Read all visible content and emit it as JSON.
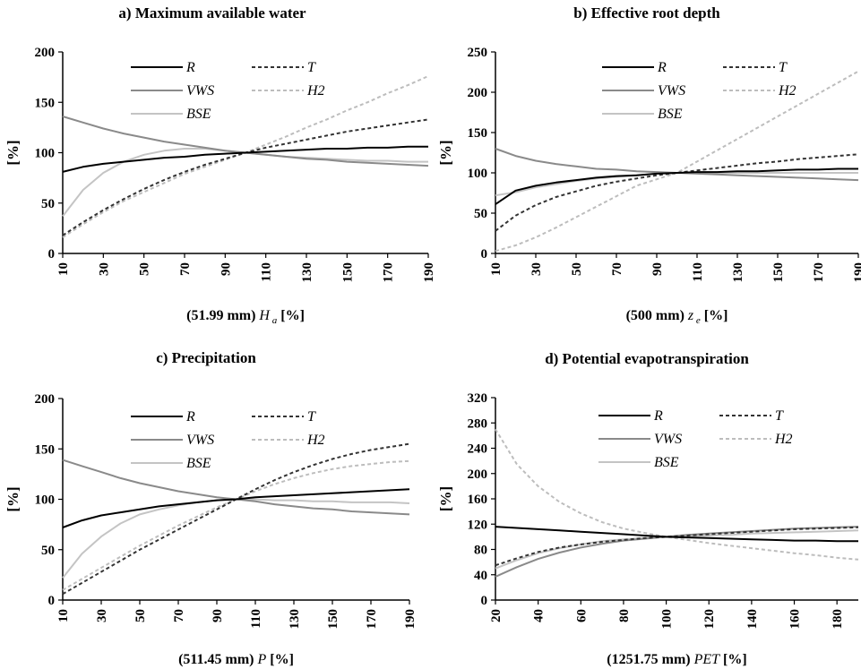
{
  "chart_data": [
    {
      "type": "line",
      "title": "a) Maximum available water",
      "xlabel_prefix": "(51.99 mm)",
      "xlabel_var": "H",
      "xlabel_sub": "a",
      "xlabel_unit": "[%]",
      "ylabel": "[%]",
      "xlim": [
        10,
        190
      ],
      "ylim": [
        0,
        200
      ],
      "yticks": [
        0,
        50,
        100,
        150,
        200
      ],
      "xticks": [
        10,
        30,
        50,
        70,
        90,
        110,
        130,
        150,
        170,
        190
      ],
      "x": [
        10,
        20,
        30,
        40,
        50,
        60,
        70,
        80,
        90,
        100,
        110,
        120,
        130,
        140,
        150,
        160,
        170,
        180,
        190
      ],
      "series": [
        {
          "name": "R",
          "color": "#000000",
          "dash": false,
          "values": [
            81,
            86,
            89,
            91,
            93,
            95,
            96,
            98,
            99,
            100,
            101,
            102,
            103,
            104,
            104,
            105,
            105,
            106,
            106
          ]
        },
        {
          "name": "T",
          "color": "#333333",
          "dash": true,
          "values": [
            18,
            31,
            43,
            54,
            64,
            73,
            81,
            88,
            94,
            100,
            105,
            109,
            113,
            117,
            121,
            124,
            127,
            130,
            133
          ]
        },
        {
          "name": "VWS",
          "color": "#8a8a8a",
          "dash": false,
          "values": [
            136,
            130,
            124,
            119,
            115,
            111,
            108,
            105,
            102,
            100,
            98,
            96,
            94,
            93,
            91,
            90,
            89,
            88,
            87
          ]
        },
        {
          "name": "H2",
          "color": "#bdbdbd",
          "dash": true,
          "values": [
            16,
            29,
            41,
            52,
            61,
            70,
            79,
            86,
            93,
            100,
            108,
            116,
            125,
            133,
            142,
            150,
            159,
            167,
            176
          ]
        },
        {
          "name": "BSE",
          "color": "#c4c4c4",
          "dash": false,
          "values": [
            37,
            63,
            80,
            91,
            98,
            102,
            104,
            104,
            102,
            100,
            98,
            96,
            95,
            94,
            93,
            92,
            92,
            91,
            91
          ]
        }
      ]
    },
    {
      "type": "line",
      "title": "b) Effective root depth",
      "xlabel_prefix": "(500 mm)",
      "xlabel_var": "z",
      "xlabel_sub": "e",
      "xlabel_unit": "[%]",
      "ylabel": "[%]",
      "xlim": [
        10,
        190
      ],
      "ylim": [
        0,
        250
      ],
      "yticks": [
        0,
        50,
        100,
        150,
        200,
        250
      ],
      "xticks": [
        10,
        30,
        50,
        70,
        90,
        110,
        130,
        150,
        170,
        190
      ],
      "x": [
        10,
        20,
        30,
        40,
        50,
        60,
        70,
        80,
        90,
        100,
        110,
        120,
        130,
        140,
        150,
        160,
        170,
        180,
        190
      ],
      "series": [
        {
          "name": "R",
          "color": "#000000",
          "dash": false,
          "values": [
            61,
            78,
            84,
            88,
            91,
            94,
            96,
            97,
            99,
            100,
            101,
            101,
            102,
            102,
            103,
            104,
            104,
            105,
            105
          ]
        },
        {
          "name": "T",
          "color": "#333333",
          "dash": true,
          "values": [
            28,
            47,
            60,
            70,
            77,
            84,
            89,
            93,
            97,
            100,
            103,
            106,
            109,
            112,
            114,
            117,
            119,
            121,
            123
          ]
        },
        {
          "name": "VWS",
          "color": "#8a8a8a",
          "dash": false,
          "values": [
            130,
            121,
            115,
            111,
            108,
            105,
            104,
            102,
            101,
            100,
            99,
            98,
            97,
            96,
            95,
            94,
            93,
            92,
            91
          ]
        },
        {
          "name": "H2",
          "color": "#bdbdbd",
          "dash": true,
          "values": [
            3,
            10,
            20,
            32,
            45,
            58,
            71,
            84,
            92,
            100,
            114,
            128,
            142,
            156,
            170,
            184,
            198,
            212,
            226
          ]
        },
        {
          "name": "BSE",
          "color": "#c4c4c4",
          "dash": false,
          "values": [
            72,
            76,
            82,
            86,
            90,
            93,
            95,
            97,
            99,
            100,
            100,
            100,
            100,
            100,
            100,
            100,
            100,
            100,
            100
          ]
        }
      ]
    },
    {
      "type": "line",
      "title": "c) Precipitation",
      "xlabel_prefix": "(511.45 mm)",
      "xlabel_var": "P",
      "xlabel_sub": "",
      "xlabel_unit": "[%]",
      "ylabel": "[%]",
      "xlim": [
        10,
        190
      ],
      "ylim": [
        0,
        200
      ],
      "yticks": [
        0,
        50,
        100,
        150,
        200
      ],
      "xticks": [
        10,
        30,
        50,
        70,
        90,
        110,
        130,
        150,
        170,
        190
      ],
      "x": [
        10,
        20,
        30,
        40,
        50,
        60,
        70,
        80,
        90,
        100,
        110,
        120,
        130,
        140,
        150,
        160,
        170,
        180,
        190
      ],
      "series": [
        {
          "name": "R",
          "color": "#000000",
          "dash": false,
          "values": [
            72,
            79,
            84,
            87,
            90,
            93,
            95,
            97,
            99,
            100,
            102,
            103,
            104,
            105,
            106,
            107,
            108,
            109,
            110
          ]
        },
        {
          "name": "T",
          "color": "#333333",
          "dash": true,
          "values": [
            6,
            17,
            28,
            39,
            50,
            60,
            70,
            80,
            90,
            100,
            110,
            119,
            127,
            134,
            140,
            145,
            149,
            152,
            155
          ]
        },
        {
          "name": "VWS",
          "color": "#8a8a8a",
          "dash": false,
          "values": [
            139,
            133,
            127,
            121,
            116,
            112,
            108,
            105,
            102,
            100,
            98,
            95,
            93,
            91,
            90,
            88,
            87,
            86,
            85
          ]
        },
        {
          "name": "H2",
          "color": "#bdbdbd",
          "dash": true,
          "values": [
            10,
            21,
            32,
            43,
            54,
            64,
            74,
            83,
            92,
            100,
            108,
            115,
            121,
            126,
            130,
            133,
            135,
            137,
            138
          ]
        },
        {
          "name": "BSE",
          "color": "#c4c4c4",
          "dash": false,
          "values": [
            22,
            46,
            63,
            76,
            85,
            90,
            94,
            97,
            99,
            100,
            100,
            99,
            99,
            98,
            98,
            97,
            97,
            97,
            96
          ]
        }
      ]
    },
    {
      "type": "line",
      "title": "d) Potential evapotranspiration",
      "xlabel_prefix": "(1251.75 mm)",
      "xlabel_var": "PET",
      "xlabel_sub": "",
      "xlabel_unit": "[%]",
      "ylabel": "[%]",
      "xlim": [
        20,
        190
      ],
      "ylim": [
        0,
        320
      ],
      "yticks": [
        0,
        40,
        80,
        120,
        160,
        200,
        240,
        280,
        320
      ],
      "xticks": [
        20,
        40,
        60,
        80,
        100,
        120,
        140,
        160,
        180
      ],
      "x": [
        20,
        30,
        40,
        50,
        60,
        70,
        80,
        90,
        100,
        110,
        120,
        130,
        140,
        150,
        160,
        170,
        180,
        190
      ],
      "series": [
        {
          "name": "R",
          "color": "#000000",
          "dash": false,
          "values": [
            116,
            114,
            112,
            110,
            108,
            106,
            104,
            102,
            100,
            99,
            98,
            97,
            96,
            95,
            94,
            94,
            93,
            93
          ]
        },
        {
          "name": "T",
          "color": "#333333",
          "dash": true,
          "values": [
            55,
            66,
            76,
            83,
            88,
            92,
            95,
            98,
            100,
            102,
            104,
            106,
            108,
            110,
            112,
            113,
            114,
            115
          ]
        },
        {
          "name": "VWS",
          "color": "#8a8a8a",
          "dash": false,
          "values": [
            37,
            52,
            65,
            75,
            83,
            89,
            94,
            97,
            100,
            103,
            105,
            107,
            109,
            111,
            113,
            114,
            115,
            116
          ]
        },
        {
          "name": "H2",
          "color": "#bdbdbd",
          "dash": true,
          "values": [
            270,
            215,
            180,
            155,
            137,
            123,
            113,
            106,
            100,
            95,
            90,
            86,
            82,
            78,
            74,
            71,
            67,
            64
          ]
        },
        {
          "name": "BSE",
          "color": "#c4c4c4",
          "dash": false,
          "values": [
            50,
            63,
            74,
            82,
            88,
            93,
            96,
            98,
            100,
            101,
            102,
            103,
            105,
            106,
            107,
            108,
            109,
            110
          ]
        }
      ]
    }
  ]
}
